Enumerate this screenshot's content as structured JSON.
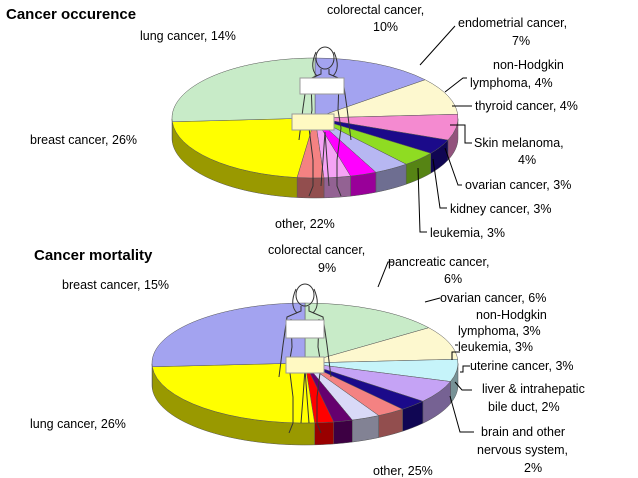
{
  "chart_data": [
    {
      "type": "pie",
      "title": "Cancer occurence",
      "slices": [
        {
          "label": "lung cancer, 14%",
          "value": 14,
          "color": "#a3a3f0"
        },
        {
          "label": "colorectal cancer, 10%",
          "value": 10,
          "color": "#fdf8cf"
        },
        {
          "label": "endometrial cancer, 7%",
          "value": 7,
          "color": "#f48ad0"
        },
        {
          "label": "non-Hodgkin lymphoma, 4%",
          "value": 4,
          "color": "#1b0a8a"
        },
        {
          "label": "thyroid cancer, 4%",
          "value": 4,
          "color": "#8fdc22"
        },
        {
          "label": "Skin melanoma, 4%",
          "value": 4,
          "color": "#b7b7f2"
        },
        {
          "label": "ovarian cancer, 3%",
          "value": 3,
          "color": "#ff00ff"
        },
        {
          "label": "kidney cancer, 3%",
          "value": 3,
          "color": "#f5a3f5"
        },
        {
          "label": "leukemia, 3%",
          "value": 3,
          "color": "#f48282"
        },
        {
          "label": "other, 22%",
          "value": 22,
          "color": "#ffff00"
        },
        {
          "label": "breast cancer, 26%",
          "value": 26,
          "color": "#c8ebc8"
        }
      ]
    },
    {
      "type": "pie",
      "title": "Cancer mortality",
      "slices": [
        {
          "label": "breast cancer, 15%",
          "value": 15,
          "color": "#c8ebc8"
        },
        {
          "label": "colorectal cancer, 9%",
          "value": 9,
          "color": "#fdf8cf"
        },
        {
          "label": "pancreatic cancer, 6%",
          "value": 6,
          "color": "#c6f4fa"
        },
        {
          "label": "ovarian cancer, 6%",
          "value": 6,
          "color": "#c5a3f5"
        },
        {
          "label": "non-Hodgkin lymphoma, 3%",
          "value": 3,
          "color": "#1b0a8a"
        },
        {
          "label": "leukemia, 3%",
          "value": 3,
          "color": "#f48282"
        },
        {
          "label": "uterine cancer, 3%",
          "value": 3,
          "color": "#d9d9f7"
        },
        {
          "label": "liver & intrahepatic bile duct, 2%",
          "value": 2,
          "color": "#66006f"
        },
        {
          "label": "brain and other nervous system, 2%",
          "value": 2,
          "color": "#ff0000"
        },
        {
          "label": "other, 25%",
          "value": 25,
          "color": "#ffff00"
        },
        {
          "label": "lung cancer, 26%",
          "value": 26,
          "color": "#a3a3f0"
        }
      ]
    }
  ],
  "labels": {
    "occ": {
      "title": "Cancer occurence",
      "lung": "lung cancer, 14%",
      "colorectal_1": "colorectal cancer,",
      "colorectal_2": "10%",
      "endometrial_1": "endometrial cancer,",
      "endometrial_2": "7%",
      "nhl_1": "non-Hodgkin",
      "nhl_2": "lymphoma, 4%",
      "thyroid": "thyroid cancer, 4%",
      "melanoma_1": "Skin melanoma,",
      "melanoma_2": "4%",
      "ovarian": "ovarian cancer, 3%",
      "kidney": "kidney cancer, 3%",
      "leukemia": "leukemia, 3%",
      "other": "other, 22%",
      "breast": "breast cancer, 26%"
    },
    "mort": {
      "title": "Cancer mortality",
      "breast": "breast cancer, 15%",
      "colorectal_1": "colorectal cancer,",
      "colorectal_2": "9%",
      "pancreatic_1": "pancreatic cancer,",
      "pancreatic_2": "6%",
      "ovarian": "ovarian cancer, 6%",
      "nhl_1": "non-Hodgkin",
      "nhl_2": "lymphoma, 3%",
      "leukemia": "leukemia, 3%",
      "uterine": "uterine cancer, 3%",
      "liver_1": "liver & intrahepatic",
      "liver_2": "bile duct, 2%",
      "brain_1": "brain and other",
      "brain_2": "nervous system,",
      "brain_3": "2%",
      "other": "other, 25%",
      "lung": "lung cancer, 26%"
    }
  },
  "figure_icon": "human-figure-outline-icon"
}
